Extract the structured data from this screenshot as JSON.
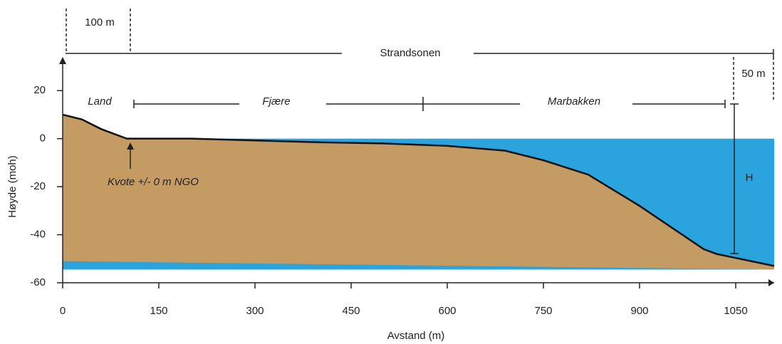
{
  "chart_data": {
    "type": "area",
    "x": [
      0,
      30,
      60,
      100,
      200,
      400,
      500,
      600,
      690,
      750,
      820,
      900,
      1000,
      1020,
      1110
    ],
    "values": [
      10,
      8,
      4,
      0,
      0,
      -1.5,
      -2,
      -3,
      -5,
      -9,
      -15,
      -28,
      -46,
      -48,
      -53
    ],
    "color": "#c59b64",
    "water_level": 0,
    "water_color": "#2ba3dc",
    "sediment_base": [
      -51,
      -54.5
    ],
    "xlabel": "Avstand (m)",
    "ylabel": "Høyde (moh)",
    "xlim": [
      0,
      1110
    ],
    "ylim": [
      -60,
      34
    ],
    "xticks": [
      0,
      150,
      300,
      450,
      600,
      750,
      900,
      1050
    ],
    "yticks": [
      20,
      0,
      -20,
      -40,
      -60
    ],
    "annotations": {
      "span": "100 m",
      "zone": "Strandsonen",
      "span2": "50 m",
      "land": "Land",
      "shore": "Fjære",
      "slope": "Marbakken",
      "datum": "Kvote +/- 0 m NGO",
      "height": "H"
    }
  }
}
